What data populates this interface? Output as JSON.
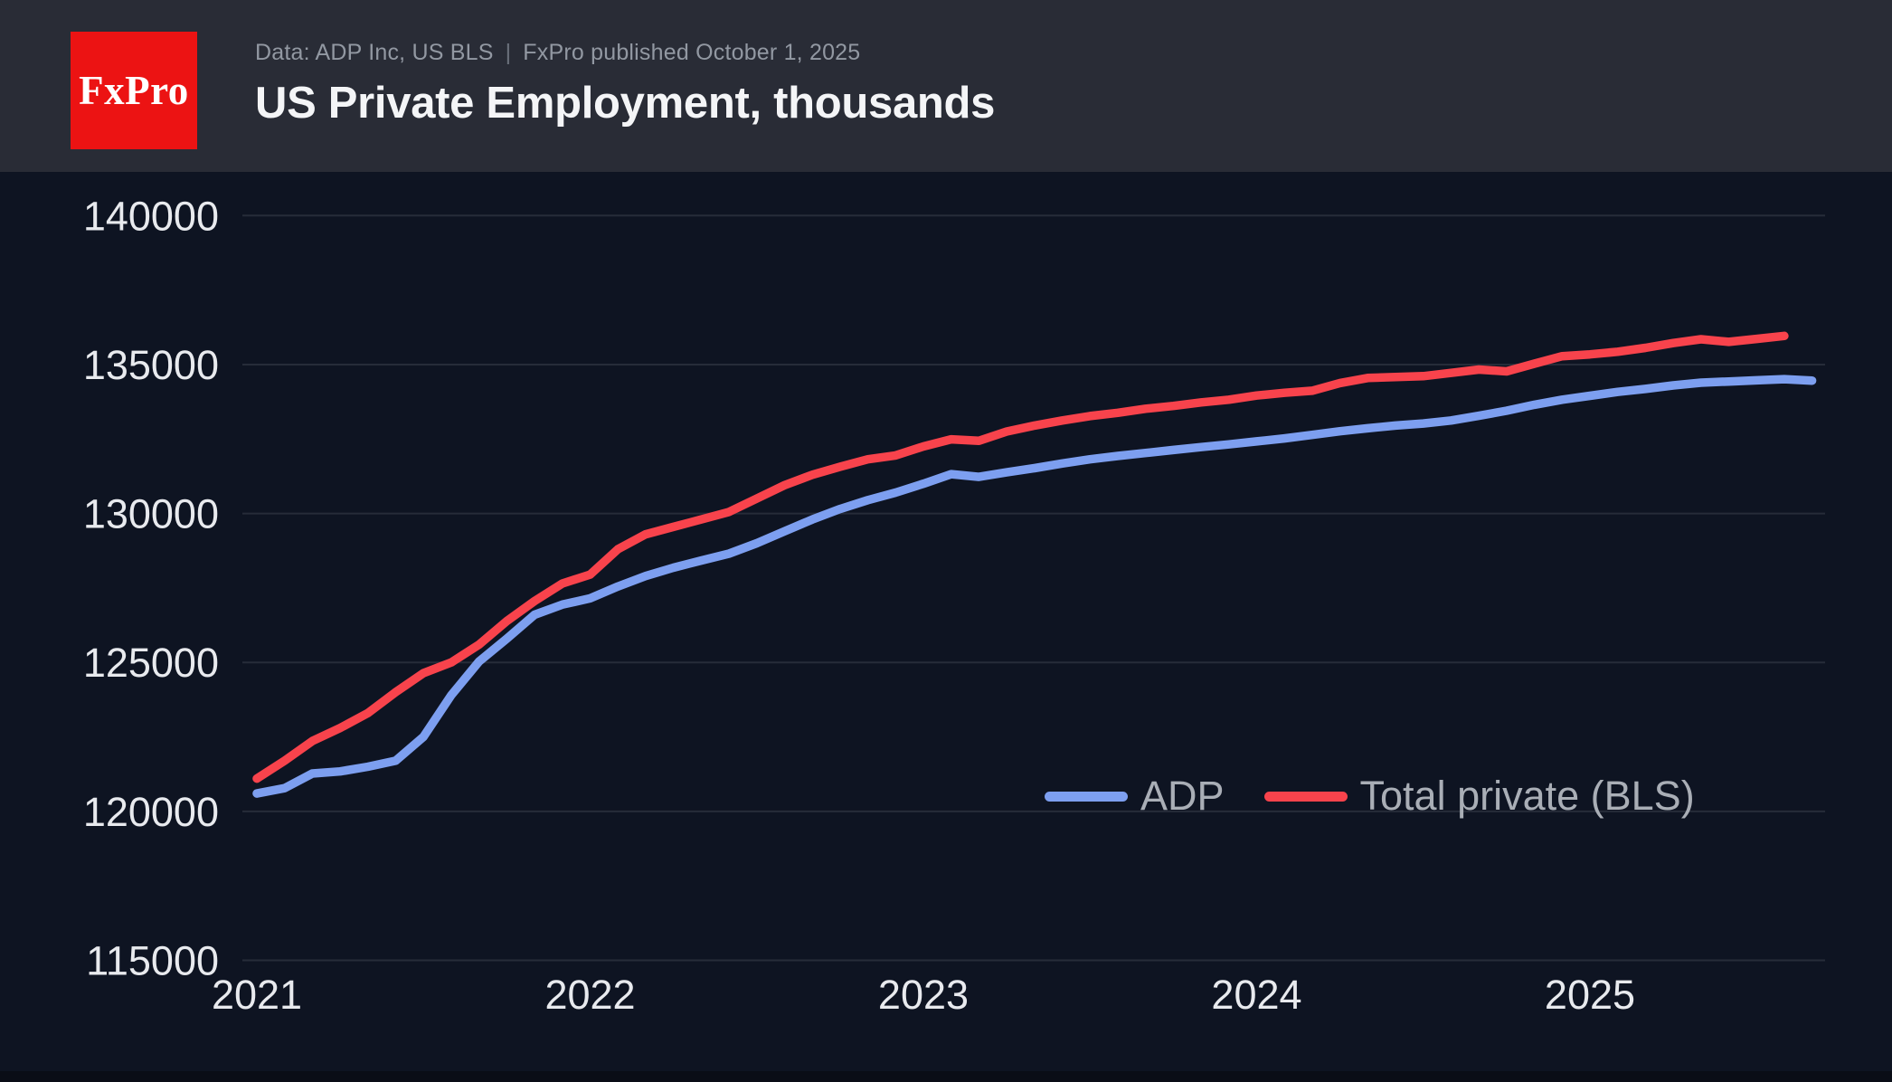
{
  "header": {
    "logo_text": "FxPro",
    "source_text": "Data: ADP Inc, US BLS",
    "separator": "|",
    "published_text": "FxPro published October 1, 2025",
    "title": "US Private Employment, thousands"
  },
  "colors": {
    "page_bg": "#0e1422",
    "header_bg": "#292c36",
    "footer_bg": "#0a0d16",
    "logo_red": "#ec1313",
    "grid": "#3a3f4d",
    "axis_text": "#e8eaee",
    "legend_text": "#a9aeb6",
    "adp_blue": "#7d9ff0",
    "bls_red": "#f8434c"
  },
  "legend": {
    "items": [
      {
        "label": "ADP"
      },
      {
        "label": "Total private (BLS)"
      }
    ]
  },
  "chart_data": {
    "type": "line",
    "title": "US Private Employment, thousands",
    "ylabel": "",
    "xlabel": "",
    "grid": true,
    "legend_position": "center-right",
    "ylim": [
      113500,
      141500
    ],
    "y_ticks": [
      115000,
      120000,
      125000,
      130000,
      135000,
      140000
    ],
    "x_ticks": [
      "2021",
      "2022",
      "2023",
      "2024",
      "2025"
    ],
    "x": [
      "2021-01",
      "2021-02",
      "2021-03",
      "2021-04",
      "2021-05",
      "2021-06",
      "2021-07",
      "2021-08",
      "2021-09",
      "2021-10",
      "2021-11",
      "2021-12",
      "2022-01",
      "2022-02",
      "2022-03",
      "2022-04",
      "2022-05",
      "2022-06",
      "2022-07",
      "2022-08",
      "2022-09",
      "2022-10",
      "2022-11",
      "2022-12",
      "2023-01",
      "2023-02",
      "2023-03",
      "2023-04",
      "2023-05",
      "2023-06",
      "2023-07",
      "2023-08",
      "2023-09",
      "2023-10",
      "2023-11",
      "2023-12",
      "2024-01",
      "2024-02",
      "2024-03",
      "2024-04",
      "2024-05",
      "2024-06",
      "2024-07",
      "2024-08",
      "2024-09",
      "2024-10",
      "2024-11",
      "2024-12",
      "2025-01",
      "2025-02",
      "2025-03",
      "2025-04",
      "2025-05",
      "2025-06",
      "2025-07",
      "2025-08",
      "2025-09"
    ],
    "series": [
      {
        "name": "ADP",
        "color": "#7d9ff0",
        "values": [
          120600,
          120780,
          121270,
          121340,
          121500,
          121700,
          122500,
          123900,
          125030,
          125800,
          126600,
          126940,
          127150,
          127550,
          127900,
          128180,
          128420,
          128650,
          129000,
          129400,
          129800,
          130150,
          130450,
          130700,
          131000,
          131320,
          131230,
          131380,
          131520,
          131680,
          131820,
          131930,
          132030,
          132130,
          132230,
          132320,
          132420,
          132520,
          132640,
          132760,
          132860,
          132950,
          133020,
          133120,
          133280,
          133450,
          133650,
          133820,
          133950,
          134080,
          134180,
          134300,
          134390,
          134430,
          134470,
          134510,
          134460
        ]
      },
      {
        "name": "Total private (BLS)",
        "color": "#f8434c",
        "values": [
          121100,
          121700,
          122360,
          122800,
          123300,
          124000,
          124640,
          125000,
          125600,
          126390,
          127060,
          127650,
          127950,
          128800,
          129300,
          129550,
          129800,
          130050,
          130500,
          130950,
          131300,
          131570,
          131820,
          131950,
          132250,
          132490,
          132440,
          132750,
          132950,
          133120,
          133270,
          133380,
          133515,
          133610,
          133730,
          133820,
          133960,
          134050,
          134120,
          134380,
          134550,
          134580,
          134610,
          134720,
          134830,
          134770,
          135030,
          135280,
          135340,
          135430,
          135560,
          135720,
          135850,
          135760,
          135860,
          135960,
          null
        ]
      }
    ]
  }
}
